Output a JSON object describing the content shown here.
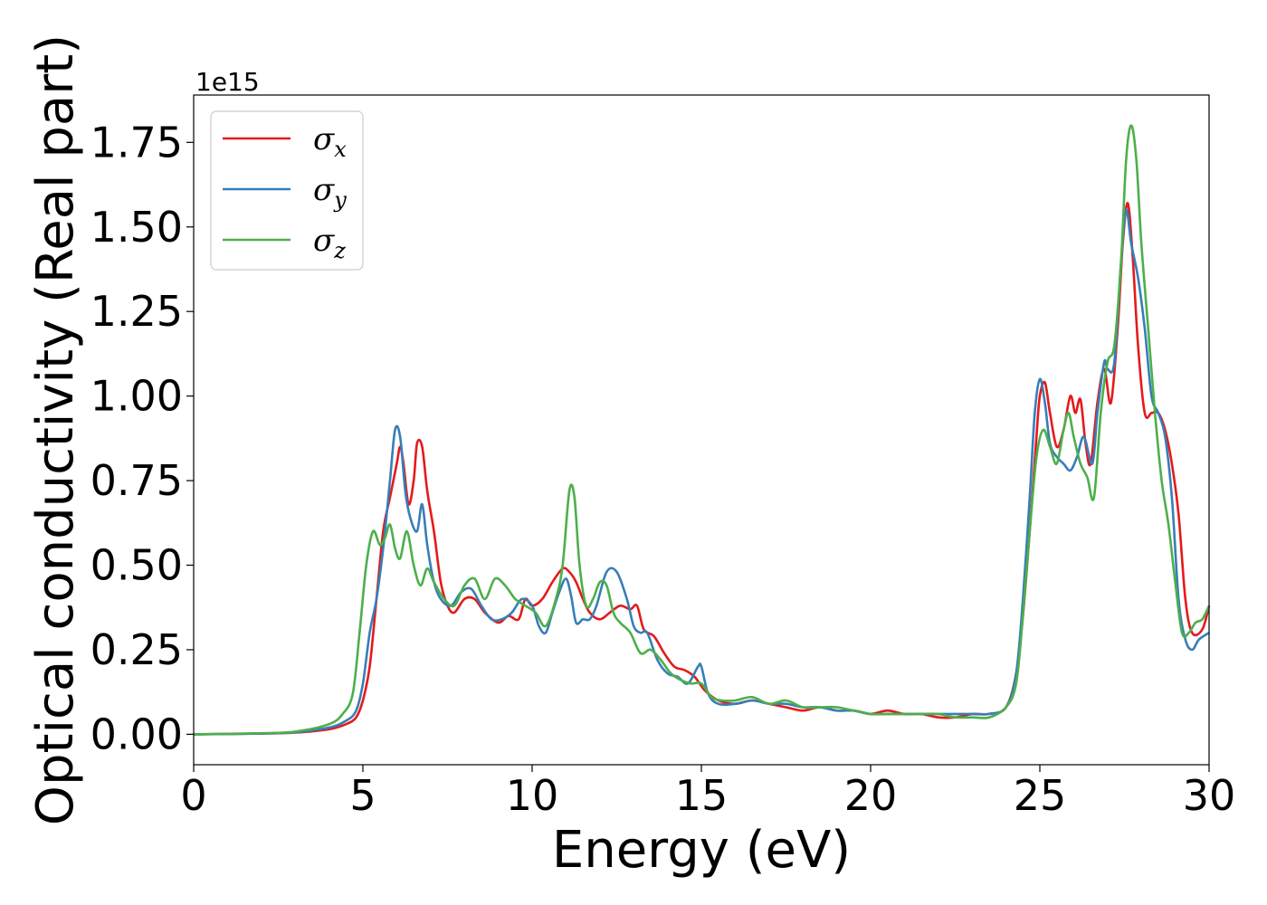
{
  "chart_data": {
    "type": "line",
    "title": "",
    "xlabel": "Energy (eV)",
    "ylabel": "Optical conductivity (Real part)",
    "y_offset_label": "1e15",
    "xlim": [
      0,
      30
    ],
    "ylim": [
      -0.09,
      1.89
    ],
    "x_ticks": [
      0,
      5,
      10,
      15,
      20,
      25,
      30
    ],
    "x_tick_labels": [
      "0",
      "5",
      "10",
      "15",
      "20",
      "25",
      "30"
    ],
    "y_ticks": [
      0.0,
      0.25,
      0.5,
      0.75,
      1.0,
      1.25,
      1.5,
      1.75
    ],
    "y_tick_labels": [
      "0.00",
      "0.25",
      "0.50",
      "0.75",
      "1.00",
      "1.25",
      "1.50",
      "1.75"
    ],
    "grid": false,
    "legend_position": "top-left",
    "series": [
      {
        "name": "σ",
        "subscript": "x",
        "color": "#e41a1c",
        "x": [
          0,
          2,
          3,
          4,
          4.5,
          4.8,
          5.0,
          5.2,
          5.4,
          5.6,
          5.8,
          6.0,
          6.1,
          6.2,
          6.35,
          6.5,
          6.6,
          6.75,
          6.9,
          7.1,
          7.3,
          7.5,
          7.7,
          8.0,
          8.3,
          8.6,
          9.0,
          9.3,
          9.6,
          9.8,
          10.0,
          10.3,
          10.6,
          10.9,
          11.1,
          11.3,
          11.5,
          11.7,
          12.0,
          12.3,
          12.6,
          12.9,
          13.1,
          13.3,
          13.6,
          13.9,
          14.2,
          14.5,
          14.8,
          15.1,
          15.5,
          16.0,
          16.5,
          17.0,
          17.5,
          18.0,
          18.5,
          19.0,
          19.5,
          20.0,
          20.5,
          21.0,
          21.5,
          22.0,
          22.5,
          23.0,
          23.5,
          24.0,
          24.3,
          24.5,
          24.7,
          24.9,
          25.0,
          25.15,
          25.3,
          25.5,
          25.7,
          25.9,
          26.05,
          26.2,
          26.35,
          26.5,
          26.7,
          26.9,
          27.1,
          27.3,
          27.45,
          27.6,
          27.75,
          27.9,
          28.1,
          28.3,
          28.5,
          28.7,
          28.9,
          29.1,
          29.3,
          29.5,
          29.8,
          30
        ],
        "y": [
          0.0,
          0.002,
          0.005,
          0.015,
          0.03,
          0.05,
          0.1,
          0.2,
          0.4,
          0.6,
          0.7,
          0.8,
          0.85,
          0.8,
          0.68,
          0.75,
          0.86,
          0.85,
          0.72,
          0.6,
          0.45,
          0.38,
          0.36,
          0.4,
          0.4,
          0.36,
          0.33,
          0.35,
          0.34,
          0.4,
          0.38,
          0.4,
          0.45,
          0.49,
          0.48,
          0.45,
          0.4,
          0.36,
          0.34,
          0.36,
          0.38,
          0.37,
          0.38,
          0.31,
          0.29,
          0.24,
          0.2,
          0.19,
          0.17,
          0.13,
          0.1,
          0.09,
          0.1,
          0.09,
          0.08,
          0.07,
          0.08,
          0.07,
          0.07,
          0.06,
          0.07,
          0.06,
          0.06,
          0.05,
          0.05,
          0.06,
          0.06,
          0.08,
          0.18,
          0.35,
          0.6,
          0.88,
          1.0,
          1.04,
          0.95,
          0.85,
          0.9,
          1.0,
          0.95,
          0.99,
          0.86,
          0.8,
          0.98,
          1.08,
          0.98,
          1.2,
          1.45,
          1.57,
          1.4,
          1.15,
          0.95,
          0.95,
          0.95,
          0.9,
          0.8,
          0.65,
          0.4,
          0.3,
          0.31,
          0.38
        ]
      },
      {
        "name": "σ",
        "subscript": "y",
        "color": "#377eb8",
        "x": [
          0,
          2,
          3,
          4,
          4.5,
          4.8,
          5.0,
          5.2,
          5.4,
          5.6,
          5.8,
          5.95,
          6.1,
          6.25,
          6.4,
          6.6,
          6.75,
          6.9,
          7.1,
          7.3,
          7.6,
          7.9,
          8.2,
          8.5,
          8.8,
          9.1,
          9.4,
          9.7,
          10.0,
          10.2,
          10.4,
          10.6,
          10.8,
          11.0,
          11.15,
          11.3,
          11.5,
          11.7,
          11.9,
          12.2,
          12.5,
          12.8,
          13.0,
          13.2,
          13.4,
          13.7,
          14.0,
          14.3,
          14.6,
          14.9,
          15.0,
          15.2,
          15.5,
          16.0,
          16.5,
          17.0,
          17.5,
          18.0,
          18.5,
          19.0,
          19.5,
          20.0,
          20.5,
          21.0,
          21.5,
          22.0,
          22.5,
          23.0,
          23.5,
          24.0,
          24.3,
          24.5,
          24.7,
          24.85,
          25.0,
          25.15,
          25.3,
          25.5,
          25.7,
          25.9,
          26.1,
          26.3,
          26.55,
          26.7,
          26.9,
          27.0,
          27.2,
          27.4,
          27.55,
          27.7,
          27.9,
          28.1,
          28.3,
          28.5,
          28.7,
          28.9,
          29.1,
          29.3,
          29.5,
          29.7,
          30
        ],
        "y": [
          0.0,
          0.002,
          0.006,
          0.02,
          0.04,
          0.07,
          0.15,
          0.3,
          0.4,
          0.55,
          0.75,
          0.9,
          0.88,
          0.72,
          0.64,
          0.6,
          0.68,
          0.56,
          0.45,
          0.4,
          0.38,
          0.42,
          0.43,
          0.38,
          0.34,
          0.34,
          0.36,
          0.4,
          0.38,
          0.32,
          0.3,
          0.36,
          0.42,
          0.46,
          0.41,
          0.33,
          0.34,
          0.34,
          0.38,
          0.48,
          0.48,
          0.4,
          0.32,
          0.3,
          0.3,
          0.22,
          0.18,
          0.17,
          0.15,
          0.2,
          0.2,
          0.12,
          0.09,
          0.09,
          0.1,
          0.09,
          0.09,
          0.08,
          0.08,
          0.07,
          0.07,
          0.06,
          0.06,
          0.06,
          0.06,
          0.06,
          0.06,
          0.06,
          0.06,
          0.08,
          0.18,
          0.4,
          0.7,
          0.95,
          1.05,
          0.98,
          0.86,
          0.82,
          0.8,
          0.78,
          0.82,
          0.88,
          0.8,
          0.95,
          1.1,
          1.08,
          1.1,
          1.4,
          1.55,
          1.45,
          1.35,
          1.2,
          1.0,
          0.95,
          0.88,
          0.7,
          0.4,
          0.28,
          0.25,
          0.28,
          0.3
        ]
      },
      {
        "name": "σ",
        "subscript": "z",
        "color": "#4daf4a",
        "x": [
          0,
          2,
          3,
          4,
          4.4,
          4.7,
          4.9,
          5.1,
          5.3,
          5.5,
          5.65,
          5.8,
          5.95,
          6.1,
          6.3,
          6.5,
          6.7,
          6.9,
          7.1,
          7.4,
          7.7,
          8.0,
          8.3,
          8.6,
          8.9,
          9.2,
          9.5,
          9.8,
          10.1,
          10.4,
          10.7,
          10.9,
          11.1,
          11.25,
          11.4,
          11.6,
          11.8,
          12.0,
          12.2,
          12.4,
          12.6,
          12.9,
          13.2,
          13.5,
          13.8,
          14.1,
          14.4,
          14.7,
          15.0,
          15.3,
          15.6,
          16.0,
          16.5,
          17.0,
          17.5,
          18.0,
          18.5,
          19.0,
          19.5,
          20.0,
          20.5,
          21.0,
          21.5,
          22.0,
          22.5,
          23.0,
          23.5,
          24.0,
          24.3,
          24.5,
          24.7,
          24.9,
          25.1,
          25.3,
          25.5,
          25.7,
          25.85,
          26.0,
          26.2,
          26.4,
          26.6,
          26.8,
          27.0,
          27.2,
          27.4,
          27.55,
          27.7,
          27.85,
          28.0,
          28.2,
          28.4,
          28.6,
          28.8,
          29.0,
          29.2,
          29.4,
          29.6,
          29.8,
          30
        ],
        "y": [
          0.0,
          0.003,
          0.008,
          0.03,
          0.06,
          0.12,
          0.3,
          0.5,
          0.6,
          0.56,
          0.58,
          0.62,
          0.55,
          0.52,
          0.6,
          0.5,
          0.44,
          0.49,
          0.45,
          0.4,
          0.38,
          0.44,
          0.46,
          0.4,
          0.46,
          0.44,
          0.4,
          0.38,
          0.36,
          0.32,
          0.4,
          0.5,
          0.72,
          0.7,
          0.5,
          0.38,
          0.4,
          0.45,
          0.44,
          0.36,
          0.33,
          0.3,
          0.24,
          0.25,
          0.22,
          0.18,
          0.16,
          0.15,
          0.15,
          0.11,
          0.1,
          0.1,
          0.11,
          0.09,
          0.1,
          0.08,
          0.08,
          0.08,
          0.07,
          0.06,
          0.06,
          0.06,
          0.06,
          0.06,
          0.05,
          0.05,
          0.05,
          0.08,
          0.15,
          0.35,
          0.6,
          0.82,
          0.9,
          0.85,
          0.8,
          0.9,
          0.95,
          0.88,
          0.8,
          0.76,
          0.7,
          0.95,
          1.1,
          1.15,
          1.4,
          1.7,
          1.8,
          1.7,
          1.45,
          1.2,
          0.95,
          0.75,
          0.62,
          0.45,
          0.3,
          0.3,
          0.33,
          0.34,
          0.38
        ]
      }
    ]
  }
}
